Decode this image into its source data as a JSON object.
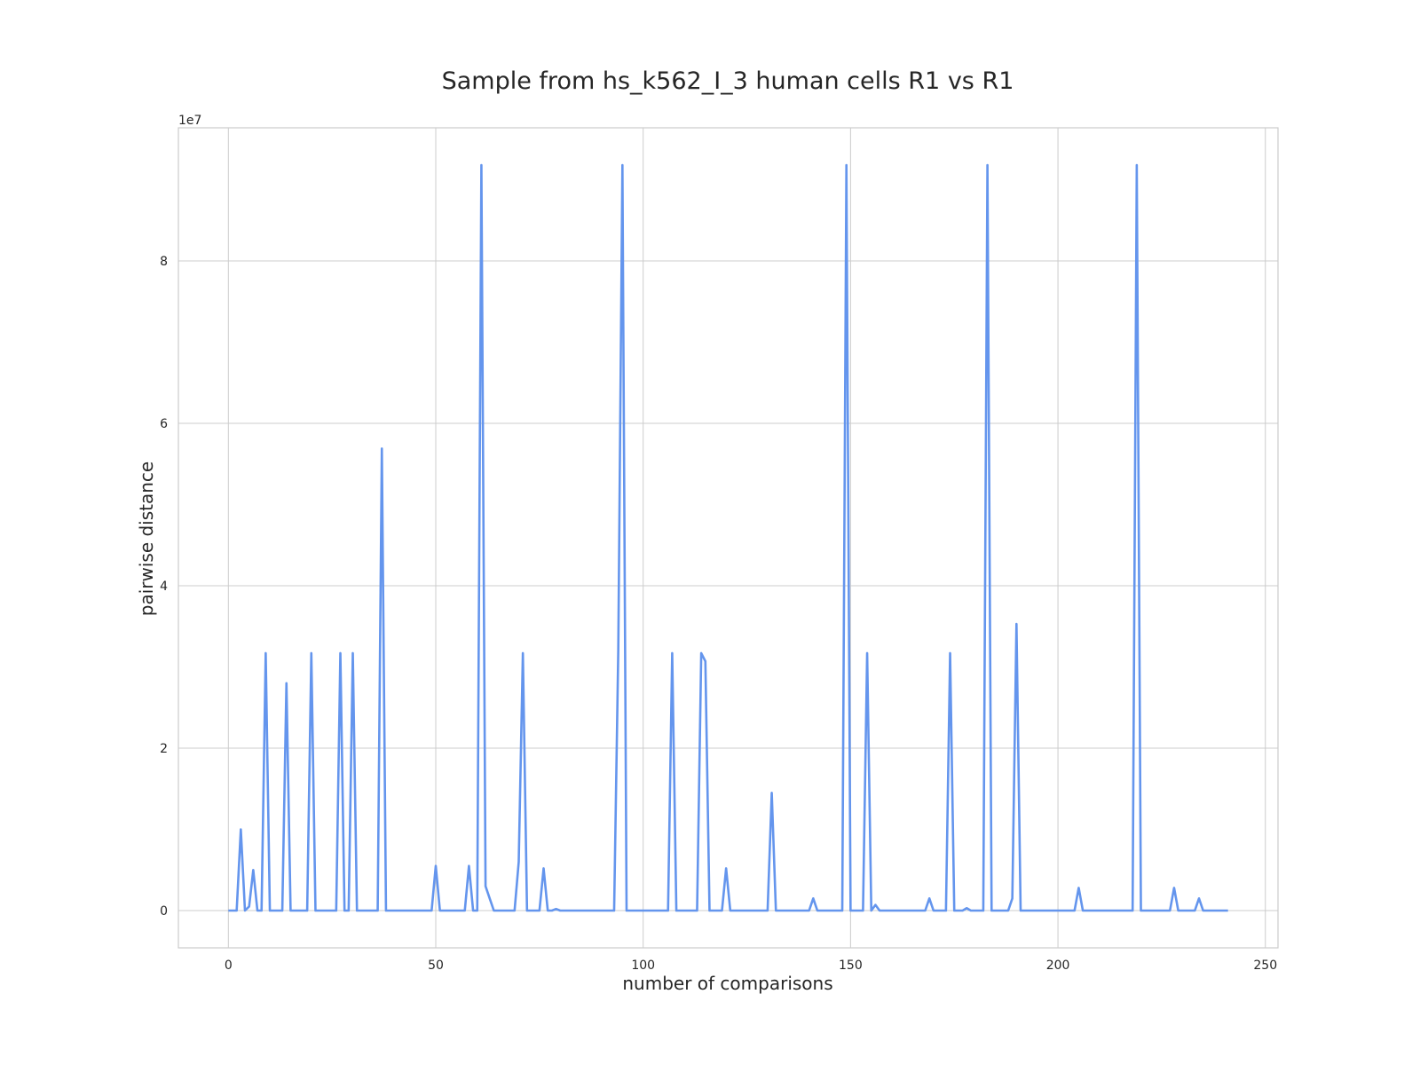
{
  "chart_data": {
    "type": "line",
    "title": "Sample from hs_k562_I_3 human cells R1 vs R1",
    "x_label": "number of comparisons",
    "y_label": "pairwise distance",
    "y_offset_label": "1e7",
    "color": "#6495ed",
    "grid": true,
    "xlim": [
      -12.05,
      253.05
    ],
    "ylim": [
      -0.459,
      9.64
    ],
    "xticks": [
      0,
      50,
      100,
      150,
      200,
      250
    ],
    "yticks": [
      0,
      2,
      4,
      6,
      8
    ],
    "x": [
      0,
      1,
      2,
      3,
      4,
      5,
      6,
      7,
      8,
      9,
      10,
      11,
      12,
      13,
      14,
      15,
      16,
      17,
      18,
      19,
      20,
      21,
      22,
      23,
      24,
      25,
      26,
      27,
      28,
      29,
      30,
      31,
      32,
      33,
      34,
      35,
      36,
      37,
      38,
      39,
      40,
      41,
      42,
      43,
      44,
      45,
      46,
      47,
      48,
      49,
      50,
      51,
      52,
      53,
      54,
      55,
      56,
      57,
      58,
      59,
      60,
      61,
      62,
      63,
      64,
      65,
      66,
      67,
      68,
      69,
      70,
      71,
      72,
      73,
      74,
      75,
      76,
      77,
      78,
      79,
      80,
      81,
      82,
      83,
      84,
      85,
      86,
      87,
      88,
      89,
      90,
      91,
      92,
      93,
      94,
      95,
      96,
      97,
      98,
      99,
      100,
      101,
      102,
      103,
      104,
      105,
      106,
      107,
      108,
      109,
      110,
      111,
      112,
      113,
      114,
      115,
      116,
      117,
      118,
      119,
      120,
      121,
      122,
      123,
      124,
      125,
      126,
      127,
      128,
      129,
      130,
      131,
      132,
      133,
      134,
      135,
      136,
      137,
      138,
      139,
      140,
      141,
      142,
      143,
      144,
      145,
      146,
      147,
      148,
      149,
      150,
      151,
      152,
      153,
      154,
      155,
      156,
      157,
      158,
      159,
      160,
      161,
      162,
      163,
      164,
      165,
      166,
      167,
      168,
      169,
      170,
      171,
      172,
      173,
      174,
      175,
      176,
      177,
      178,
      179,
      180,
      181,
      182,
      183,
      184,
      185,
      186,
      187,
      188,
      189,
      190,
      191,
      192,
      193,
      194,
      195,
      196,
      197,
      198,
      199,
      200,
      201,
      202,
      203,
      204,
      205,
      206,
      207,
      208,
      209,
      210,
      211,
      212,
      213,
      214,
      215,
      216,
      217,
      218,
      219,
      220,
      221,
      222,
      223,
      224,
      225,
      226,
      227,
      228,
      229,
      230,
      231,
      232,
      233,
      234,
      235,
      236,
      237,
      238,
      239,
      240,
      241
    ],
    "values": [
      0,
      0,
      0,
      1.0,
      0,
      0.05,
      0.5,
      0,
      0,
      3.17,
      0,
      0,
      0,
      0,
      2.8,
      0,
      0,
      0,
      0,
      0,
      3.17,
      0,
      0,
      0,
      0,
      0,
      0,
      3.17,
      0,
      0,
      3.17,
      0,
      0,
      0,
      0,
      0,
      0,
      5.69,
      0,
      0,
      0,
      0,
      0,
      0,
      0,
      0,
      0,
      0,
      0,
      0,
      0.55,
      0,
      0,
      0,
      0,
      0,
      0,
      0,
      0.55,
      0,
      0,
      9.18,
      0.3,
      0.15,
      0,
      0,
      0,
      0,
      0,
      0,
      0.6,
      3.17,
      0,
      0,
      0,
      0,
      0.52,
      0,
      0,
      0.02,
      0,
      0,
      0,
      0,
      0,
      0,
      0,
      0,
      0,
      0,
      0,
      0,
      0,
      0,
      3.2,
      9.18,
      0,
      0,
      0,
      0,
      0,
      0,
      0,
      0,
      0,
      0,
      0,
      3.17,
      0,
      0,
      0,
      0,
      0,
      0,
      3.17,
      3.07,
      0,
      0,
      0,
      0,
      0.52,
      0,
      0,
      0,
      0,
      0,
      0,
      0,
      0,
      0,
      0,
      1.45,
      0,
      0,
      0,
      0,
      0,
      0,
      0,
      0,
      0,
      0.15,
      0,
      0,
      0,
      0,
      0,
      0,
      0,
      9.18,
      0,
      0,
      0,
      0,
      3.17,
      0,
      0.07,
      0,
      0,
      0,
      0,
      0,
      0,
      0,
      0,
      0,
      0,
      0,
      0,
      0.15,
      0,
      0,
      0,
      0,
      3.17,
      0,
      0,
      0,
      0.03,
      0,
      0,
      0,
      0,
      9.18,
      0,
      0,
      0,
      0,
      0,
      0.15,
      3.53,
      0,
      0,
      0,
      0,
      0,
      0,
      0,
      0,
      0,
      0,
      0,
      0,
      0,
      0,
      0.28,
      0,
      0,
      0,
      0,
      0,
      0,
      0,
      0,
      0,
      0,
      0,
      0,
      0,
      9.18,
      0,
      0,
      0,
      0,
      0,
      0,
      0,
      0,
      0.28,
      0,
      0,
      0,
      0,
      0,
      0.15,
      0,
      0,
      0,
      0,
      0,
      0,
      0
    ]
  }
}
